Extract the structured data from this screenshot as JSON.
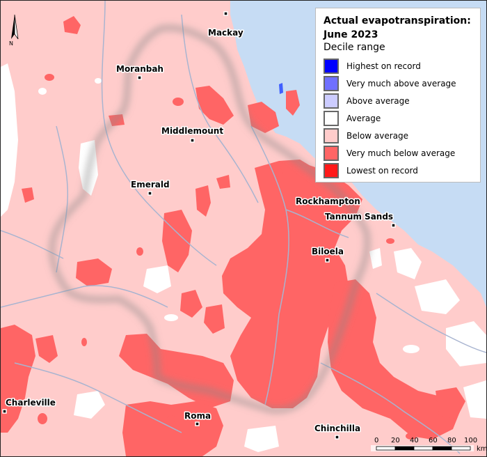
{
  "legend": {
    "title_line1": "Actual evapotranspiration:",
    "title_line2": "June 2023",
    "subtitle": "Decile range",
    "items": [
      {
        "label": "Highest on record",
        "color": "#0000ff"
      },
      {
        "label": "Very much above average",
        "color": "#7070ff"
      },
      {
        "label": "Above average",
        "color": "#ccccff"
      },
      {
        "label": "Average",
        "color": "#ffffff"
      },
      {
        "label": "Below average",
        "color": "#ffcccb"
      },
      {
        "label": "Very much below average",
        "color": "#ff6565"
      },
      {
        "label": "Lowest on record",
        "color": "#ff1a1a"
      }
    ]
  },
  "towns": {
    "mackay": "Mackay",
    "moranbah": "Moranbah",
    "middlemount": "Middlemount",
    "emerald": "Emerald",
    "rockhampton": "Rockhampton",
    "tannum_sands": "Tannum Sands",
    "biloela": "Biloela",
    "charleville": "Charleville",
    "roma": "Roma",
    "chinchilla": "Chinchilla"
  },
  "north_arrow": {
    "label": "N"
  },
  "scale_bar": {
    "ticks": [
      "0",
      "20",
      "40",
      "60",
      "80",
      "100"
    ],
    "unit": "km"
  },
  "colors": {
    "ocean": "#c6dcf4",
    "river": "#a8b4d0",
    "basin_shadow": "#888888",
    "below_average": "#ffcccb",
    "very_much_below": "#ff6565"
  }
}
